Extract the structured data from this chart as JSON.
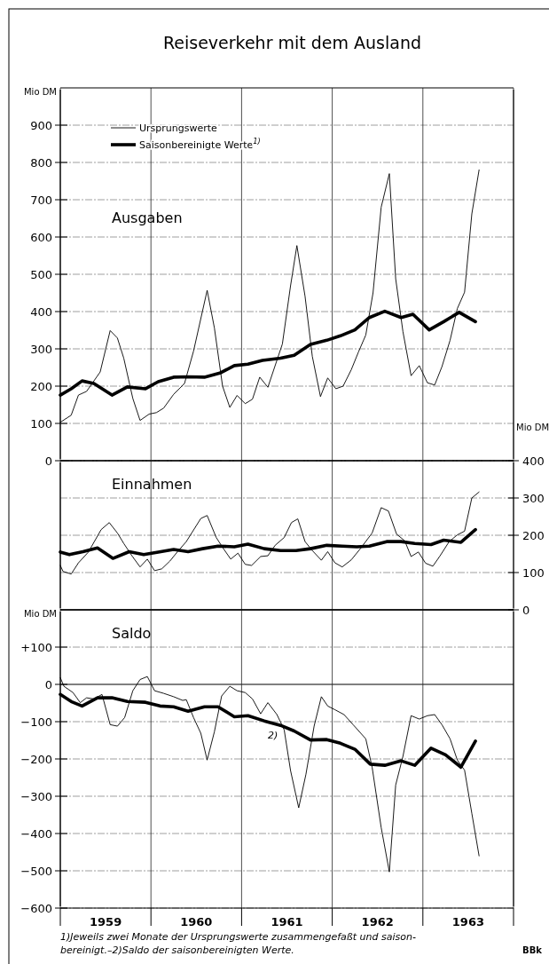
{
  "chart_data": [
    {
      "type": "line",
      "title": "Reiseverkehr mit dem Ausland",
      "subtitle": "Ausgaben",
      "ylabel": "Mio DM",
      "xlim": [
        1959,
        1964
      ],
      "xticks": [
        {
          "value": 1959,
          "label": null
        },
        {
          "value": 1960,
          "label": null
        },
        {
          "value": 1961,
          "label": null
        },
        {
          "value": 1962,
          "label": null
        },
        {
          "value": 1963,
          "label": null
        },
        {
          "value": 1964,
          "label": null
        }
      ],
      "ylim": [
        0,
        1000
      ],
      "yticks": [
        0,
        100,
        200,
        300,
        400,
        500,
        600,
        700,
        800,
        900
      ],
      "grid": true,
      "legend": "top left",
      "tick_labels": "y",
      "series": [
        {
          "name": "Ursprungswerte",
          "color": "#000000",
          "x": [
            1959.0,
            1959.12,
            1959.2,
            1959.29,
            1959.44,
            1959.55,
            1959.63,
            1959.7,
            1959.8,
            1959.88,
            1959.98,
            1960.06,
            1960.14,
            1960.25,
            1960.37,
            1960.47,
            1960.62,
            1960.7,
            1960.79,
            1960.87,
            1960.95,
            1961.04,
            1961.12,
            1961.2,
            1961.29,
            1961.45,
            1961.54,
            1961.61,
            1961.7,
            1961.78,
            1961.87,
            1961.95,
            1962.04,
            1962.12,
            1962.21,
            1962.29,
            1962.37,
            1962.45,
            1962.54,
            1962.63,
            1962.7,
            1962.78,
            1962.87,
            1962.96,
            1963.05,
            1963.13,
            1963.21,
            1963.3,
            1963.38,
            1963.46,
            1963.54,
            1963.62
          ],
          "values": [
            103,
            122,
            176,
            186,
            238,
            349,
            329,
            275,
            167,
            108,
            125,
            129,
            141,
            178,
            207,
            294,
            457,
            356,
            200,
            143,
            175,
            153,
            165,
            224,
            197,
            313,
            469,
            577,
            441,
            280,
            172,
            222,
            193,
            200,
            244,
            292,
            337,
            450,
            680,
            770,
            488,
            346,
            228,
            255,
            209,
            203,
            252,
            323,
            408,
            452,
            662,
            780
          ]
        },
        {
          "name": "Saisonbereinigte Werte$^{1)}$",
          "color": "#000000",
          "x": [
            1959.0,
            1959.12,
            1959.24,
            1959.37,
            1959.57,
            1959.74,
            1959.94,
            1960.08,
            1960.25,
            1960.41,
            1960.59,
            1960.76,
            1960.92,
            1961.07,
            1961.23,
            1961.43,
            1961.58,
            1961.76,
            1961.94,
            1962.09,
            1962.25,
            1962.41,
            1962.58,
            1962.76,
            1962.89,
            1963.07,
            1963.23,
            1963.4,
            1963.58
          ],
          "values": [
            176,
            193,
            214,
            207,
            176,
            198,
            193,
            212,
            224,
            225,
            224,
            235,
            255,
            259,
            269,
            275,
            283,
            312,
            323,
            335,
            351,
            384,
            401,
            384,
            393,
            351,
            373,
            398,
            373
          ]
        }
      ]
    },
    {
      "type": "line",
      "title": "Einnahmen",
      "y2label": "Mio DM",
      "xlim": [
        1959,
        1964
      ],
      "xticks": [
        {
          "value": 1959,
          "label": null
        },
        {
          "value": 1960,
          "label": null
        },
        {
          "value": 1961,
          "label": null
        },
        {
          "value": 1962,
          "label": null
        },
        {
          "value": 1963,
          "label": null
        },
        {
          "value": 1964,
          "label": null
        }
      ],
      "y2lim": [
        0,
        400
      ],
      "y2ticks": [
        0,
        100,
        200,
        300,
        400
      ],
      "grid": true,
      "tick_labels": "y",
      "series": [
        {
          "color": "#000000",
          "axis": "y2",
          "x": [
            1959.0,
            1959.03,
            1959.12,
            1959.2,
            1959.31,
            1959.45,
            1959.54,
            1959.63,
            1959.7,
            1959.79,
            1959.88,
            1959.96,
            1960.04,
            1960.12,
            1960.21,
            1960.29,
            1960.39,
            1960.55,
            1960.62,
            1960.72,
            1960.8,
            1960.88,
            1960.96,
            1961.04,
            1961.11,
            1961.21,
            1961.29,
            1961.37,
            1961.47,
            1961.55,
            1961.62,
            1961.7,
            1961.78,
            1961.88,
            1961.95,
            1962.03,
            1962.11,
            1962.21,
            1962.31,
            1962.44,
            1962.54,
            1962.62,
            1962.71,
            1962.8,
            1962.87,
            1962.95,
            1963.03,
            1963.11,
            1963.19,
            1963.29,
            1963.38,
            1963.46,
            1963.54,
            1963.62
          ],
          "values": [
            119,
            103,
            96,
            126,
            155,
            215,
            234,
            206,
            178,
            145,
            115,
            136,
            105,
            110,
            131,
            155,
            183,
            245,
            253,
            194,
            164,
            136,
            152,
            122,
            119,
            143,
            145,
            173,
            194,
            234,
            244,
            183,
            159,
            133,
            156,
            126,
            115,
            134,
            164,
            206,
            274,
            265,
            203,
            185,
            143,
            155,
            125,
            117,
            145,
            183,
            201,
            211,
            300,
            316
          ]
        },
        {
          "color": "#000000",
          "axis": "y2",
          "x": [
            1959.0,
            1959.1,
            1959.25,
            1959.41,
            1959.58,
            1959.76,
            1959.92,
            1960.08,
            1960.25,
            1960.41,
            1960.57,
            1960.74,
            1960.92,
            1961.07,
            1961.25,
            1961.43,
            1961.6,
            1961.76,
            1961.94,
            1962.11,
            1962.27,
            1962.41,
            1962.6,
            1962.76,
            1962.91,
            1963.09,
            1963.23,
            1963.42,
            1963.58
          ],
          "values": [
            155,
            148,
            156,
            166,
            138,
            156,
            148,
            155,
            162,
            156,
            164,
            171,
            169,
            176,
            164,
            159,
            159,
            164,
            173,
            171,
            169,
            171,
            183,
            183,
            178,
            175,
            187,
            181,
            215
          ]
        }
      ]
    },
    {
      "type": "line",
      "title": "Saldo",
      "ylabel": "Mio DM",
      "xlim": [
        1959,
        1964
      ],
      "xticks": [
        {
          "value": 1959,
          "label": null
        },
        {
          "value": 1959.5,
          "label": "1959"
        },
        {
          "value": 1960,
          "label": null
        },
        {
          "value": 1960.5,
          "label": "1960"
        },
        {
          "value": 1961,
          "label": null
        },
        {
          "value": 1961.5,
          "label": "1961"
        },
        {
          "value": 1962,
          "label": null
        },
        {
          "value": 1962.5,
          "label": "1962"
        },
        {
          "value": 1963,
          "label": null
        },
        {
          "value": 1963.5,
          "label": "1963"
        },
        {
          "value": 1964,
          "label": null
        }
      ],
      "ylim": [
        -600,
        200
      ],
      "yticks": [
        {
          "value": -600,
          "label": "−600"
        },
        {
          "value": -500,
          "label": "−500"
        },
        {
          "value": -400,
          "label": "−400"
        },
        {
          "value": -300,
          "label": "−300"
        },
        {
          "value": -200,
          "label": "−200"
        },
        {
          "value": -100,
          "label": "−100"
        },
        0,
        {
          "value": 100,
          "label": "+100"
        }
      ],
      "grid": true,
      "series": [
        {
          "color": "#000000",
          "x": [
            1959.0,
            1959.04,
            1959.14,
            1959.22,
            1959.29,
            1959.37,
            1959.46,
            1959.55,
            1959.63,
            1959.71,
            1959.8,
            1959.88,
            1959.96,
            1960.04,
            1960.14,
            1960.25,
            1960.35,
            1960.39,
            1960.47,
            1960.55,
            1960.62,
            1960.7,
            1960.78,
            1960.87,
            1960.95,
            1961.04,
            1961.12,
            1961.21,
            1961.29,
            1961.39,
            1961.47,
            1961.54,
            1961.63,
            1961.71,
            1961.8,
            1961.88,
            1961.95,
            1962.03,
            1962.13,
            1962.23,
            1962.37,
            1962.44,
            1962.54,
            1962.63,
            1962.7,
            1962.78,
            1962.87,
            1962.96,
            1963.05,
            1963.13,
            1963.21,
            1963.3,
            1963.38,
            1963.46,
            1963.54,
            1963.62
          ],
          "values": [
            18,
            -5,
            -22,
            -49,
            -36,
            -39,
            -27,
            -108,
            -112,
            -89,
            -17,
            13,
            21,
            -17,
            -24,
            -33,
            -43,
            -41,
            -89,
            -131,
            -203,
            -127,
            -31,
            -5,
            -17,
            -22,
            -39,
            -79,
            -49,
            -81,
            -122,
            -231,
            -331,
            -241,
            -112,
            -33,
            -58,
            -68,
            -81,
            -108,
            -146,
            -222,
            -384,
            -503,
            -270,
            -193,
            -84,
            -93,
            -84,
            -81,
            -108,
            -146,
            -203,
            -230,
            -346,
            -460
          ]
        },
        {
          "color": "#000000",
          "x": [
            1959.0,
            1959.12,
            1959.24,
            1959.41,
            1959.57,
            1959.74,
            1959.94,
            1960.1,
            1960.25,
            1960.41,
            1960.59,
            1960.74,
            1960.92,
            1961.07,
            1961.25,
            1961.43,
            1961.58,
            1961.76,
            1961.94,
            1962.09,
            1962.25,
            1962.42,
            1962.58,
            1962.76,
            1962.91,
            1963.09,
            1963.25,
            1963.42,
            1963.58
          ],
          "values": [
            -27,
            -46,
            -58,
            -36,
            -36,
            -46,
            -48,
            -58,
            -60,
            -72,
            -60,
            -60,
            -87,
            -84,
            -98,
            -110,
            -125,
            -149,
            -148,
            -158,
            -174,
            -214,
            -217,
            -205,
            -217,
            -171,
            -189,
            -222,
            -152
          ]
        }
      ],
      "annotations": [
        {
          "text": "2)",
          "x": 1961.25,
          "y": -98
        },
        "1)Jeweils zwei Monate der Ursprungswerte zusammengefaßt und saison-",
        "bereinigt.–2)Saldo der saisonbereinigten Werte.",
        "BBk"
      ]
    }
  ]
}
